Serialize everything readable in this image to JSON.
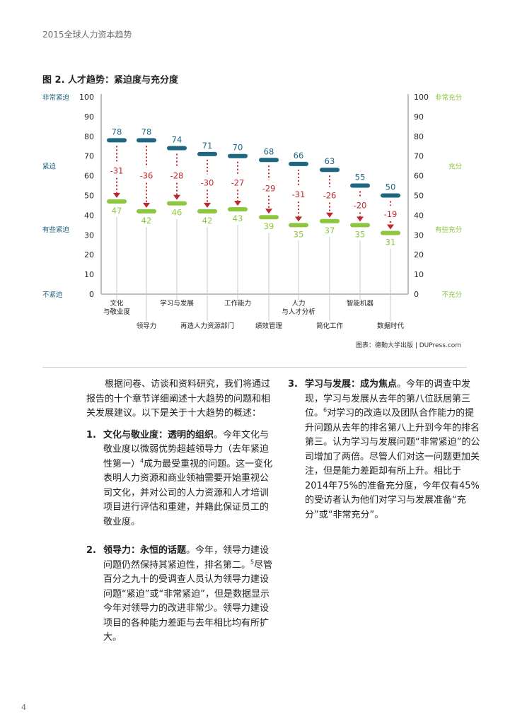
{
  "page": {
    "running_head": "2015全球人力资本趋势",
    "page_number": "4"
  },
  "figure": {
    "title": "图 2. 人才趋势：紧迫度与充分度",
    "credit": "图表：德勤大学出版 | DUPress.com"
  },
  "chart_data": {
    "type": "dumbbell",
    "title": "图 2. 人才趋势：紧迫度与充分度",
    "categories": [
      "文化与敬业度",
      "领导力",
      "学习与发展",
      "再造人力资源部门",
      "工作能力",
      "绩效管理",
      "人力与人才分析",
      "简化工作",
      "智能机器",
      "数据时代"
    ],
    "category_label_lines": [
      [
        "文化",
        "与敬业度"
      ],
      [
        "领导力"
      ],
      [
        "学习与发展"
      ],
      [
        "再造人力资源部门"
      ],
      [
        "工作能力"
      ],
      [
        "绩效管理"
      ],
      [
        "人力",
        "与人才分析"
      ],
      [
        "简化工作"
      ],
      [
        "智能机器"
      ],
      [
        "数据时代"
      ]
    ],
    "category_label_row": [
      0,
      1,
      0,
      1,
      0,
      1,
      0,
      1,
      0,
      1
    ],
    "series": [
      {
        "name": "紧迫度",
        "color": "#1f6680",
        "values": [
          78,
          78,
          74,
          71,
          70,
          68,
          66,
          63,
          55,
          50
        ]
      },
      {
        "name": "充分度",
        "color": "#8dc63f",
        "values": [
          47,
          42,
          46,
          42,
          43,
          39,
          35,
          37,
          35,
          31
        ]
      }
    ],
    "gaps": {
      "color": "#c0272d",
      "values": [
        -31,
        -36,
        -28,
        -30,
        -27,
        -29,
        -31,
        -26,
        -20,
        -19
      ]
    },
    "ylim": [
      0,
      100
    ],
    "yticks": [
      0,
      10,
      20,
      30,
      40,
      50,
      60,
      70,
      80,
      90,
      100
    ],
    "left_axis_labels": [
      {
        "value": 100,
        "text": "非常紧迫"
      },
      {
        "value": 65,
        "text": "紧迫"
      },
      {
        "value": 33,
        "text": "有些紧迫"
      },
      {
        "value": 0,
        "text": "不紧迫"
      }
    ],
    "right_axis_labels": [
      {
        "value": 100,
        "text": "非常充分"
      },
      {
        "value": 65,
        "text": "充分"
      },
      {
        "value": 33,
        "text": "有些充分"
      },
      {
        "value": 0,
        "text": "不充分"
      }
    ],
    "left_label_color": "#1f6680",
    "right_label_color": "#8dc63f",
    "grid": false
  },
  "body": {
    "intro": "根据问卷、访谈和资料研究，我们将通过报告的十个章节详细阐述十大趋势的问题和相关发展建议。以下是关于十大趋势的概述：",
    "items": [
      {
        "num": "1.",
        "heading": "文化与敬业度：透明的组织",
        "text_before_note": "。今年文化与敬业度以微弱优势超越领导力（去年紧迫性第一）",
        "note": "4",
        "text_after_note": "成为最受重视的问题。这一变化表明人力资源和商业领袖需要开始重视公司文化，并对公司的人力资源和人才培训项目进行评估和重建，并籍此保证员工的敬业度。"
      },
      {
        "num": "2.",
        "heading": "领导力：永恒的话题",
        "text_before_note": "。今年，领导力建设问题仍然保持其紧迫性，排名第二。",
        "note": "5",
        "text_after_note": "尽管百分之九十的受调查人员认为领导力建设问题“紧迫”或“非常紧迫”，但是数据显示今年对领导力的改进非常少。领导力建设项目的各种能力差距与去年相比均有所扩大。"
      },
      {
        "num": "3.",
        "heading": "学习与发展：成为焦点",
        "text_before_note": "。今年的调查中发现，学习与发展从去年的第八位跃居第三位。",
        "note": "6",
        "text_after_note": "对学习的改造以及团队合作能力的提升问题从去年的排名第八上升到今年的排名第三。认为学习与发展问题“非常紧迫”的公司增加了两倍。尽管人们对这一问题更加关注，但是能力差距却有所上升。相比于2014年75%的准备充分度，今年仅有45%的受访者认为他们对学习与发展准备“充分”或“非常充分”。"
      }
    ]
  }
}
